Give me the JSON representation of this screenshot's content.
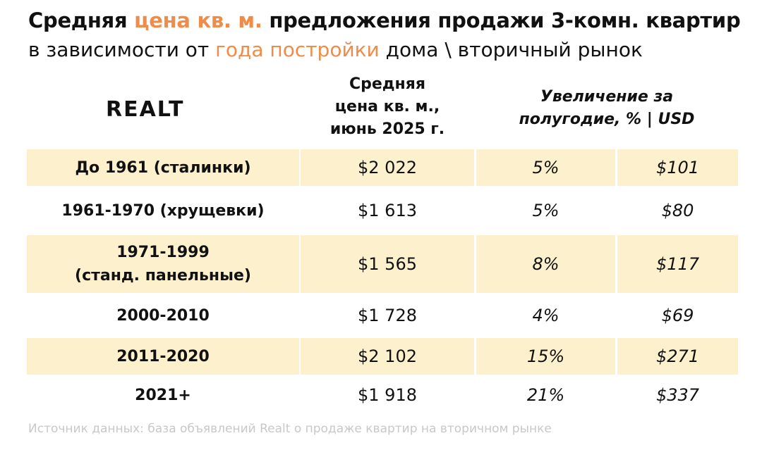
{
  "title": {
    "line1_a": "Средняя ",
    "line1_accent": "цена кв. м.",
    "line1_b": " предложения продажи 3-комн. квартир",
    "line2_a": "в зависимости от ",
    "line2_accent": "года постройки",
    "line2_b": " дома \\ вторичный рынок"
  },
  "logo": "REALT",
  "headers": {
    "price": [
      "Средняя",
      "цена кв. м.,",
      "июнь 2025 г."
    ],
    "growth": [
      "Увеличение за",
      "полугодие, % | USD"
    ]
  },
  "colors": {
    "accent": "#f08c4a",
    "row_shade": "#fdf0cc",
    "text": "#111111",
    "source_text": "#c8c8c8"
  },
  "chart_data": {
    "type": "table",
    "columns": [
      "",
      "Средняя цена кв. м., июнь 2025 г.",
      "Увеличение за полугодие, %",
      "Увеличение за полугодие, USD"
    ],
    "rows": [
      {
        "period": [
          "До 1961 (сталинки)"
        ],
        "price": "$2 022",
        "pct": "5%",
        "usd": "$101",
        "shaded": true
      },
      {
        "period": [
          "1961-1970 (хрущевки)"
        ],
        "price": "$1 613",
        "pct": "5%",
        "usd": "$80",
        "shaded": false
      },
      {
        "period": [
          "1971-1999",
          "(станд. панельные)"
        ],
        "price": "$1 565",
        "pct": "8%",
        "usd": "$117",
        "shaded": true
      },
      {
        "period": [
          "2000-2010"
        ],
        "price": "$1 728",
        "pct": "4%",
        "usd": "$69",
        "shaded": false
      },
      {
        "period": [
          "2011-2020"
        ],
        "price": "$2 102",
        "pct": "15%",
        "usd": "$271",
        "shaded": true
      },
      {
        "period": [
          "2021+"
        ],
        "price": "$1 918",
        "pct": "21%",
        "usd": "$337",
        "shaded": false
      }
    ]
  },
  "source": "Источник данных: база объявлений Realt о продаже квартир на вторичном рынке"
}
